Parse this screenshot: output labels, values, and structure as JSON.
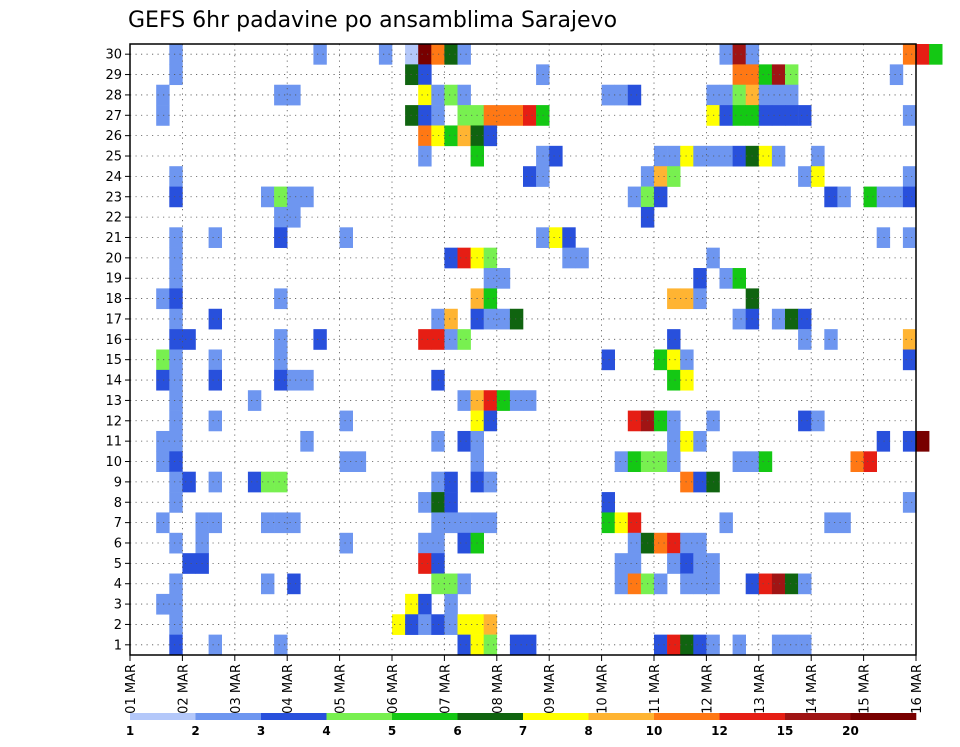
{
  "chart_data": {
    "type": "heatmap",
    "title": "GEFS 6hr padavine po ansamblima Sarajevo",
    "xlabel": "",
    "ylabel": "",
    "x_ticks": [
      "01 MAR",
      "02 MAR",
      "03 MAR",
      "04 MAR",
      "05 MAR",
      "06 MAR",
      "07 MAR",
      "08 MAR",
      "09 MAR",
      "10 MAR",
      "11 MAR",
      "12 MAR",
      "13 MAR",
      "14 MAR",
      "15 MAR",
      "16 MAR"
    ],
    "y_ticks": [
      "1",
      "2",
      "3",
      "4",
      "5",
      "6",
      "7",
      "8",
      "9",
      "10",
      "11",
      "12",
      "13",
      "14",
      "15",
      "16",
      "17",
      "18",
      "19",
      "20",
      "21",
      "22",
      "23",
      "24",
      "25",
      "26",
      "27",
      "28",
      "29",
      "30"
    ],
    "grid": true,
    "legend_position": "bottom",
    "colorbar": {
      "labels": [
        "1",
        "2",
        "3",
        "4",
        "5",
        "6",
        "7",
        "8",
        "10",
        "12",
        "15",
        "20"
      ],
      "colors": [
        "#b4c8fa",
        "#6e96f0",
        "#2850dc",
        "#78f050",
        "#14c814",
        "#106410",
        "#ffff00",
        "#ffb432",
        "#ff7814",
        "#e61e14",
        "#a01414",
        "#780000"
      ]
    },
    "cells_note": "",
    "cells": [
      [
        30,
        3,
        1
      ],
      [
        30,
        14,
        1
      ],
      [
        30,
        19,
        1
      ],
      [
        30,
        21,
        0
      ],
      [
        30,
        22,
        11
      ],
      [
        30,
        23,
        8
      ],
      [
        30,
        24,
        5
      ],
      [
        30,
        25,
        1
      ],
      [
        30,
        45,
        1
      ],
      [
        30,
        46,
        10
      ],
      [
        30,
        47,
        1
      ],
      [
        30,
        59,
        8
      ],
      [
        30,
        60,
        9
      ],
      [
        30,
        61,
        4
      ],
      [
        29,
        3,
        1
      ],
      [
        29,
        21,
        5
      ],
      [
        29,
        22,
        2
      ],
      [
        29,
        31,
        1
      ],
      [
        29,
        46,
        8
      ],
      [
        29,
        47,
        8
      ],
      [
        29,
        48,
        4
      ],
      [
        29,
        49,
        10
      ],
      [
        29,
        50,
        3
      ],
      [
        29,
        58,
        1
      ],
      [
        28,
        2,
        1
      ],
      [
        28,
        11,
        1
      ],
      [
        28,
        12,
        1
      ],
      [
        28,
        22,
        6
      ],
      [
        28,
        23,
        1
      ],
      [
        28,
        24,
        3
      ],
      [
        28,
        25,
        1
      ],
      [
        28,
        36,
        1
      ],
      [
        28,
        37,
        1
      ],
      [
        28,
        38,
        2
      ],
      [
        28,
        44,
        1
      ],
      [
        28,
        45,
        1
      ],
      [
        28,
        46,
        3
      ],
      [
        28,
        47,
        7
      ],
      [
        28,
        48,
        1
      ],
      [
        28,
        49,
        1
      ],
      [
        28,
        50,
        1
      ],
      [
        27,
        2,
        1
      ],
      [
        27,
        21,
        5
      ],
      [
        27,
        22,
        2
      ],
      [
        27,
        23,
        1
      ],
      [
        27,
        25,
        3
      ],
      [
        27,
        26,
        3
      ],
      [
        27,
        27,
        8
      ],
      [
        27,
        28,
        8
      ],
      [
        27,
        29,
        8
      ],
      [
        27,
        30,
        9
      ],
      [
        27,
        31,
        4
      ],
      [
        27,
        44,
        6
      ],
      [
        27,
        45,
        2
      ],
      [
        27,
        46,
        4
      ],
      [
        27,
        47,
        4
      ],
      [
        27,
        48,
        2
      ],
      [
        27,
        49,
        2
      ],
      [
        27,
        50,
        2
      ],
      [
        27,
        51,
        2
      ],
      [
        27,
        59,
        1
      ],
      [
        26,
        22,
        8
      ],
      [
        26,
        23,
        6
      ],
      [
        26,
        24,
        4
      ],
      [
        26,
        25,
        7
      ],
      [
        26,
        26,
        5
      ],
      [
        26,
        27,
        2
      ],
      [
        25,
        22,
        1
      ],
      [
        25,
        26,
        4
      ],
      [
        25,
        31,
        1
      ],
      [
        25,
        32,
        2
      ],
      [
        25,
        40,
        1
      ],
      [
        25,
        41,
        1
      ],
      [
        25,
        42,
        6
      ],
      [
        25,
        43,
        1
      ],
      [
        25,
        44,
        1
      ],
      [
        25,
        45,
        1
      ],
      [
        25,
        46,
        2
      ],
      [
        25,
        47,
        5
      ],
      [
        25,
        48,
        6
      ],
      [
        25,
        49,
        1
      ],
      [
        25,
        52,
        1
      ],
      [
        24,
        3,
        1
      ],
      [
        24,
        30,
        2
      ],
      [
        24,
        31,
        1
      ],
      [
        24,
        39,
        1
      ],
      [
        24,
        40,
        7
      ],
      [
        24,
        41,
        3
      ],
      [
        24,
        51,
        1
      ],
      [
        24,
        52,
        6
      ],
      [
        24,
        59,
        1
      ],
      [
        23,
        3,
        2
      ],
      [
        23,
        10,
        1
      ],
      [
        23,
        11,
        3
      ],
      [
        23,
        12,
        1
      ],
      [
        23,
        13,
        1
      ],
      [
        23,
        38,
        1
      ],
      [
        23,
        39,
        3
      ],
      [
        23,
        40,
        2
      ],
      [
        23,
        53,
        2
      ],
      [
        23,
        54,
        1
      ],
      [
        23,
        56,
        4
      ],
      [
        23,
        57,
        1
      ],
      [
        23,
        58,
        1
      ],
      [
        23,
        59,
        2
      ],
      [
        22,
        11,
        1
      ],
      [
        22,
        12,
        1
      ],
      [
        22,
        39,
        2
      ],
      [
        21,
        3,
        1
      ],
      [
        21,
        6,
        1
      ],
      [
        21,
        11,
        2
      ],
      [
        21,
        16,
        1
      ],
      [
        21,
        31,
        1
      ],
      [
        21,
        32,
        6
      ],
      [
        21,
        33,
        2
      ],
      [
        21,
        57,
        1
      ],
      [
        21,
        59,
        1
      ],
      [
        20,
        3,
        1
      ],
      [
        20,
        24,
        2
      ],
      [
        20,
        25,
        9
      ],
      [
        20,
        26,
        6
      ],
      [
        20,
        27,
        3
      ],
      [
        20,
        33,
        1
      ],
      [
        20,
        34,
        1
      ],
      [
        20,
        44,
        1
      ],
      [
        19,
        3,
        1
      ],
      [
        19,
        27,
        1
      ],
      [
        19,
        28,
        1
      ],
      [
        19,
        43,
        2
      ],
      [
        19,
        45,
        1
      ],
      [
        19,
        46,
        4
      ],
      [
        18,
        2,
        1
      ],
      [
        18,
        3,
        2
      ],
      [
        18,
        11,
        1
      ],
      [
        18,
        26,
        7
      ],
      [
        18,
        27,
        4
      ],
      [
        18,
        41,
        7
      ],
      [
        18,
        42,
        7
      ],
      [
        18,
        43,
        1
      ],
      [
        18,
        47,
        5
      ],
      [
        17,
        3,
        1
      ],
      [
        17,
        6,
        2
      ],
      [
        17,
        23,
        1
      ],
      [
        17,
        24,
        7
      ],
      [
        17,
        26,
        2
      ],
      [
        17,
        27,
        1
      ],
      [
        17,
        28,
        1
      ],
      [
        17,
        29,
        5
      ],
      [
        17,
        46,
        1
      ],
      [
        17,
        47,
        2
      ],
      [
        17,
        49,
        1
      ],
      [
        17,
        50,
        5
      ],
      [
        17,
        51,
        2
      ],
      [
        16,
        3,
        2
      ],
      [
        16,
        4,
        2
      ],
      [
        16,
        11,
        1
      ],
      [
        16,
        14,
        2
      ],
      [
        16,
        22,
        9
      ],
      [
        16,
        23,
        9
      ],
      [
        16,
        24,
        1
      ],
      [
        16,
        25,
        3
      ],
      [
        16,
        41,
        2
      ],
      [
        16,
        51,
        1
      ],
      [
        16,
        53,
        1
      ],
      [
        16,
        59,
        7
      ],
      [
        15,
        2,
        3
      ],
      [
        15,
        3,
        1
      ],
      [
        15,
        6,
        1
      ],
      [
        15,
        11,
        1
      ],
      [
        15,
        36,
        2
      ],
      [
        15,
        40,
        4
      ],
      [
        15,
        41,
        6
      ],
      [
        15,
        42,
        1
      ],
      [
        15,
        59,
        2
      ],
      [
        14,
        2,
        2
      ],
      [
        14,
        3,
        1
      ],
      [
        14,
        6,
        2
      ],
      [
        14,
        11,
        2
      ],
      [
        14,
        12,
        1
      ],
      [
        14,
        13,
        1
      ],
      [
        14,
        23,
        2
      ],
      [
        14,
        41,
        4
      ],
      [
        14,
        42,
        6
      ],
      [
        13,
        3,
        1
      ],
      [
        13,
        9,
        1
      ],
      [
        13,
        25,
        1
      ],
      [
        13,
        26,
        7
      ],
      [
        13,
        27,
        9
      ],
      [
        13,
        28,
        4
      ],
      [
        13,
        29,
        1
      ],
      [
        13,
        30,
        1
      ],
      [
        12,
        3,
        1
      ],
      [
        12,
        6,
        1
      ],
      [
        12,
        16,
        1
      ],
      [
        12,
        26,
        6
      ],
      [
        12,
        27,
        2
      ],
      [
        12,
        38,
        9
      ],
      [
        12,
        39,
        10
      ],
      [
        12,
        40,
        4
      ],
      [
        12,
        41,
        1
      ],
      [
        12,
        44,
        1
      ],
      [
        12,
        51,
        2
      ],
      [
        12,
        52,
        1
      ],
      [
        11,
        2,
        1
      ],
      [
        11,
        3,
        1
      ],
      [
        11,
        13,
        1
      ],
      [
        11,
        23,
        1
      ],
      [
        11,
        25,
        2
      ],
      [
        11,
        26,
        1
      ],
      [
        11,
        41,
        1
      ],
      [
        11,
        42,
        6
      ],
      [
        11,
        43,
        1
      ],
      [
        11,
        57,
        2
      ],
      [
        11,
        59,
        2
      ],
      [
        11,
        60,
        11
      ],
      [
        10,
        2,
        1
      ],
      [
        10,
        3,
        2
      ],
      [
        10,
        16,
        1
      ],
      [
        10,
        17,
        1
      ],
      [
        10,
        26,
        1
      ],
      [
        10,
        37,
        1
      ],
      [
        10,
        38,
        4
      ],
      [
        10,
        39,
        3
      ],
      [
        10,
        40,
        3
      ],
      [
        10,
        41,
        1
      ],
      [
        10,
        46,
        1
      ],
      [
        10,
        47,
        1
      ],
      [
        10,
        48,
        4
      ],
      [
        10,
        55,
        8
      ],
      [
        10,
        56,
        9
      ],
      [
        9,
        3,
        1
      ],
      [
        9,
        4,
        2
      ],
      [
        9,
        6,
        1
      ],
      [
        9,
        9,
        2
      ],
      [
        9,
        10,
        3
      ],
      [
        9,
        11,
        3
      ],
      [
        9,
        23,
        1
      ],
      [
        9,
        24,
        2
      ],
      [
        9,
        26,
        2
      ],
      [
        9,
        27,
        1
      ],
      [
        9,
        42,
        8
      ],
      [
        9,
        43,
        2
      ],
      [
        9,
        44,
        5
      ],
      [
        8,
        3,
        1
      ],
      [
        8,
        22,
        1
      ],
      [
        8,
        23,
        5
      ],
      [
        8,
        24,
        2
      ],
      [
        8,
        36,
        2
      ],
      [
        8,
        59,
        1
      ],
      [
        7,
        2,
        1
      ],
      [
        7,
        5,
        1
      ],
      [
        7,
        6,
        1
      ],
      [
        7,
        10,
        1
      ],
      [
        7,
        11,
        1
      ],
      [
        7,
        12,
        1
      ],
      [
        7,
        23,
        1
      ],
      [
        7,
        24,
        1
      ],
      [
        7,
        25,
        1
      ],
      [
        7,
        26,
        1
      ],
      [
        7,
        27,
        1
      ],
      [
        7,
        36,
        4
      ],
      [
        7,
        37,
        6
      ],
      [
        7,
        38,
        9
      ],
      [
        7,
        45,
        1
      ],
      [
        7,
        53,
        1
      ],
      [
        7,
        54,
        1
      ],
      [
        6,
        3,
        1
      ],
      [
        6,
        5,
        1
      ],
      [
        6,
        16,
        1
      ],
      [
        6,
        22,
        1
      ],
      [
        6,
        23,
        1
      ],
      [
        6,
        25,
        2
      ],
      [
        6,
        26,
        4
      ],
      [
        6,
        38,
        1
      ],
      [
        6,
        39,
        5
      ],
      [
        6,
        40,
        8
      ],
      [
        6,
        41,
        9
      ],
      [
        6,
        42,
        1
      ],
      [
        6,
        43,
        1
      ],
      [
        5,
        4,
        2
      ],
      [
        5,
        5,
        2
      ],
      [
        5,
        22,
        9
      ],
      [
        5,
        23,
        2
      ],
      [
        5,
        37,
        1
      ],
      [
        5,
        38,
        1
      ],
      [
        5,
        41,
        1
      ],
      [
        5,
        42,
        2
      ],
      [
        5,
        43,
        1
      ],
      [
        5,
        44,
        1
      ],
      [
        4,
        3,
        1
      ],
      [
        4,
        10,
        1
      ],
      [
        4,
        12,
        2
      ],
      [
        4,
        23,
        3
      ],
      [
        4,
        24,
        3
      ],
      [
        4,
        25,
        1
      ],
      [
        4,
        37,
        1
      ],
      [
        4,
        38,
        8
      ],
      [
        4,
        39,
        3
      ],
      [
        4,
        40,
        1
      ],
      [
        4,
        42,
        1
      ],
      [
        4,
        43,
        1
      ],
      [
        4,
        44,
        1
      ],
      [
        4,
        47,
        2
      ],
      [
        4,
        48,
        9
      ],
      [
        4,
        49,
        10
      ],
      [
        4,
        50,
        5
      ],
      [
        4,
        51,
        1
      ],
      [
        3,
        2,
        1
      ],
      [
        3,
        3,
        1
      ],
      [
        3,
        21,
        6
      ],
      [
        3,
        22,
        2
      ],
      [
        3,
        24,
        1
      ],
      [
        2,
        3,
        1
      ],
      [
        2,
        20,
        6
      ],
      [
        2,
        21,
        2
      ],
      [
        2,
        22,
        1
      ],
      [
        2,
        23,
        2
      ],
      [
        2,
        24,
        1
      ],
      [
        2,
        25,
        6
      ],
      [
        2,
        26,
        6
      ],
      [
        2,
        27,
        7
      ],
      [
        1,
        3,
        2
      ],
      [
        1,
        6,
        1
      ],
      [
        1,
        11,
        1
      ],
      [
        1,
        25,
        2
      ],
      [
        1,
        26,
        6
      ],
      [
        1,
        27,
        3
      ],
      [
        1,
        29,
        2
      ],
      [
        1,
        30,
        2
      ],
      [
        1,
        40,
        2
      ],
      [
        1,
        41,
        9
      ],
      [
        1,
        42,
        5
      ],
      [
        1,
        43,
        2
      ],
      [
        1,
        44,
        1
      ],
      [
        1,
        46,
        1
      ],
      [
        1,
        49,
        1
      ],
      [
        1,
        50,
        1
      ],
      [
        1,
        51,
        1
      ]
    ]
  }
}
